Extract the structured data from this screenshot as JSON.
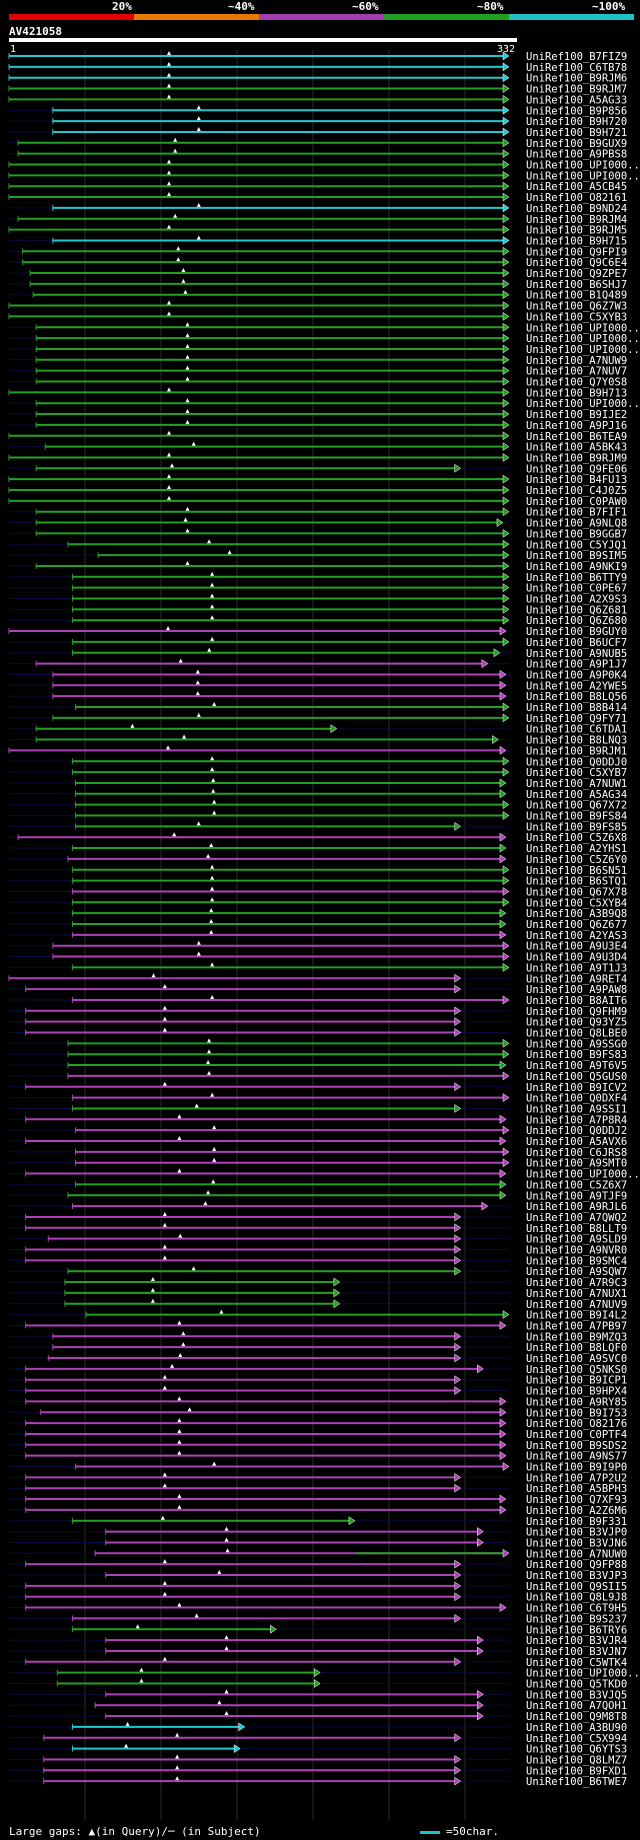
{
  "legend": {
    "labels": [
      "20%",
      "~40%",
      "~60%",
      "~80%",
      "~100%"
    ],
    "colors": [
      "#e00000",
      "#e87800",
      "#a040b0",
      "#20a020",
      "#20c0c8"
    ]
  },
  "query": {
    "id": "AV421058",
    "start": "1",
    "end": "332",
    "length": 332
  },
  "footer": {
    "gaps_text": "Large gaps: ▲(in Query)/─ (in Subject)",
    "scale_text": "=50char.",
    "scale_color": "#20c0c8"
  },
  "chart_data": {
    "type": "alignment-hits",
    "title": "AV421058",
    "x_range": [
      1,
      332
    ],
    "color_key": {
      "cyan": "~100%",
      "green": "~80%",
      "magenta": "~60%"
    },
    "hits": [
      {
        "id": "UniRef100_B7FIZ9",
        "s": 1,
        "e": 332,
        "c": "cyan"
      },
      {
        "id": "UniRef100_C6TB78",
        "s": 1,
        "e": 332,
        "c": "cyan"
      },
      {
        "id": "UniRef100_B9RJM6",
        "s": 1,
        "e": 332,
        "c": "cyan"
      },
      {
        "id": "UniRef100_B9RJM7",
        "s": 1,
        "e": 332,
        "c": "green"
      },
      {
        "id": "UniRef100_A5AG33",
        "s": 1,
        "e": 332,
        "c": "green"
      },
      {
        "id": "UniRef100_B9P856",
        "s": 30,
        "e": 332,
        "c": "cyan"
      },
      {
        "id": "UniRef100_B9H720",
        "s": 30,
        "e": 332,
        "c": "cyan"
      },
      {
        "id": "UniRef100_B9H721",
        "s": 30,
        "e": 332,
        "c": "cyan"
      },
      {
        "id": "UniRef100_B9GUX9",
        "s": 7,
        "e": 332,
        "c": "green"
      },
      {
        "id": "UniRef100_A9PBS8",
        "s": 7,
        "e": 332,
        "c": "green"
      },
      {
        "id": "UniRef100_UPI000...",
        "s": 1,
        "e": 332,
        "c": "green"
      },
      {
        "id": "UniRef100_UPI000...",
        "s": 1,
        "e": 332,
        "c": "green"
      },
      {
        "id": "UniRef100_A5CB45",
        "s": 1,
        "e": 332,
        "c": "green"
      },
      {
        "id": "UniRef100_O82161",
        "s": 1,
        "e": 332,
        "c": "green"
      },
      {
        "id": "UniRef100_B9ND24",
        "s": 30,
        "e": 332,
        "c": "cyan"
      },
      {
        "id": "UniRef100_B9RJM4",
        "s": 7,
        "e": 332,
        "c": "green"
      },
      {
        "id": "UniRef100_B9RJM5",
        "s": 1,
        "e": 332,
        "c": "green"
      },
      {
        "id": "UniRef100_B9H715",
        "s": 30,
        "e": 332,
        "c": "cyan"
      },
      {
        "id": "UniRef100_Q9FPI9",
        "s": 10,
        "e": 332,
        "c": "green"
      },
      {
        "id": "UniRef100_Q9C6E4",
        "s": 10,
        "e": 332,
        "c": "green"
      },
      {
        "id": "UniRef100_Q9ZPE7",
        "s": 15,
        "e": 332,
        "c": "green"
      },
      {
        "id": "UniRef100_B6SHJ7",
        "s": 15,
        "e": 332,
        "c": "green"
      },
      {
        "id": "UniRef100_B1Q489",
        "s": 17,
        "e": 332,
        "c": "green"
      },
      {
        "id": "UniRef100_Q6Z7W3",
        "s": 1,
        "e": 332,
        "c": "green"
      },
      {
        "id": "UniRef100_C5XYB3",
        "s": 1,
        "e": 332,
        "c": "green"
      },
      {
        "id": "UniRef100_UPI000...",
        "s": 19,
        "e": 332,
        "c": "green"
      },
      {
        "id": "UniRef100_UPI000...",
        "s": 19,
        "e": 332,
        "c": "green"
      },
      {
        "id": "UniRef100_UPI000...",
        "s": 19,
        "e": 332,
        "c": "green"
      },
      {
        "id": "UniRef100_A7NUW9",
        "s": 19,
        "e": 332,
        "c": "green"
      },
      {
        "id": "UniRef100_A7NUV7",
        "s": 19,
        "e": 332,
        "c": "green"
      },
      {
        "id": "UniRef100_Q7Y0S8",
        "s": 19,
        "e": 332,
        "c": "green"
      },
      {
        "id": "UniRef100_B9H713",
        "s": 1,
        "e": 332,
        "c": "green"
      },
      {
        "id": "UniRef100_UPI000...",
        "s": 19,
        "e": 332,
        "c": "green"
      },
      {
        "id": "UniRef100_B9IJE2",
        "s": 19,
        "e": 332,
        "c": "green"
      },
      {
        "id": "UniRef100_A9PJ16",
        "s": 19,
        "e": 332,
        "c": "green"
      },
      {
        "id": "UniRef100_B6TEA9",
        "s": 1,
        "e": 332,
        "c": "green"
      },
      {
        "id": "UniRef100_A5BK43",
        "s": 25,
        "e": 332,
        "c": "green"
      },
      {
        "id": "UniRef100_B9RJM9",
        "s": 1,
        "e": 332,
        "c": "green"
      },
      {
        "id": "UniRef100_Q9FE06",
        "s": 19,
        "e": 300,
        "c": "green"
      },
      {
        "id": "UniRef100_B4FU13",
        "s": 1,
        "e": 332,
        "c": "green"
      },
      {
        "id": "UniRef100_C4J0Z5",
        "s": 1,
        "e": 332,
        "c": "green"
      },
      {
        "id": "UniRef100_C0PAW0",
        "s": 1,
        "e": 332,
        "c": "green"
      },
      {
        "id": "UniRef100_B7FIF1",
        "s": 19,
        "e": 332,
        "c": "green"
      },
      {
        "id": "UniRef100_A9NLQ8",
        "s": 19,
        "e": 328,
        "c": "green"
      },
      {
        "id": "UniRef100_B9GGB7",
        "s": 19,
        "e": 332,
        "c": "green"
      },
      {
        "id": "UniRef100_C5YJQ1",
        "s": 40,
        "e": 332,
        "c": "green"
      },
      {
        "id": "UniRef100_B9SIM5",
        "s": 60,
        "e": 332,
        "c": "green"
      },
      {
        "id": "UniRef100_A9NKI9",
        "s": 19,
        "e": 332,
        "c": "green"
      },
      {
        "id": "UniRef100_B6TTY9",
        "s": 43,
        "e": 332,
        "c": "green"
      },
      {
        "id": "UniRef100_C0PE67",
        "s": 43,
        "e": 332,
        "c": "green"
      },
      {
        "id": "UniRef100_A2X9S3",
        "s": 43,
        "e": 332,
        "c": "green"
      },
      {
        "id": "UniRef100_Q6Z681",
        "s": 43,
        "e": 332,
        "c": "green"
      },
      {
        "id": "UniRef100_Q6Z680",
        "s": 43,
        "e": 332,
        "c": "green"
      },
      {
        "id": "UniRef100_B9GUY0",
        "s": 1,
        "e": 330,
        "c": "magenta"
      },
      {
        "id": "UniRef100_B6UCF7",
        "s": 43,
        "e": 332,
        "c": "green"
      },
      {
        "id": "UniRef100_A9NUB5",
        "s": 43,
        "e": 326,
        "c": "green"
      },
      {
        "id": "UniRef100_A9P1J7",
        "s": 19,
        "e": 318,
        "c": "magenta"
      },
      {
        "id": "UniRef100_A9P0K4",
        "s": 30,
        "e": 330,
        "c": "magenta"
      },
      {
        "id": "UniRef100_A2YWE5",
        "s": 30,
        "e": 330,
        "c": "magenta"
      },
      {
        "id": "UniRef100_B8LQ56",
        "s": 30,
        "e": 330,
        "c": "magenta"
      },
      {
        "id": "UniRef100_B8B414",
        "s": 45,
        "e": 332,
        "c": "green"
      },
      {
        "id": "UniRef100_Q9FY71",
        "s": 30,
        "e": 332,
        "c": "green"
      },
      {
        "id": "UniRef100_C6TDA1",
        "s": 19,
        "e": 218,
        "c": "green"
      },
      {
        "id": "UniRef100_B8LNQ3",
        "s": 19,
        "e": 325,
        "c": "green"
      },
      {
        "id": "UniRef100_B9RJM1",
        "s": 1,
        "e": 330,
        "c": "magenta"
      },
      {
        "id": "UniRef100_Q0DDJ0",
        "s": 43,
        "e": 332,
        "c": "green"
      },
      {
        "id": "UniRef100_C5XYB7",
        "s": 43,
        "e": 332,
        "c": "green"
      },
      {
        "id": "UniRef100_A7NUW1",
        "s": 45,
        "e": 330,
        "c": "green"
      },
      {
        "id": "UniRef100_A5AG34",
        "s": 45,
        "e": 330,
        "c": "green"
      },
      {
        "id": "UniRef100_Q67X72",
        "s": 45,
        "e": 332,
        "c": "green"
      },
      {
        "id": "UniRef100_B9FS84",
        "s": 45,
        "e": 332,
        "c": "green"
      },
      {
        "id": "UniRef100_B9FS85",
        "s": 45,
        "e": 300,
        "c": "green"
      },
      {
        "id": "UniRef100_C5Z6X8",
        "s": 7,
        "e": 330,
        "c": "magenta"
      },
      {
        "id": "UniRef100_A2YHS1",
        "s": 43,
        "e": 330,
        "c": "green"
      },
      {
        "id": "UniRef100_C5Z6Y0",
        "s": 40,
        "e": 330,
        "c": "magenta"
      },
      {
        "id": "UniRef100_B6SN51",
        "s": 43,
        "e": 332,
        "c": "green"
      },
      {
        "id": "UniRef100_B6STQ1",
        "s": 43,
        "e": 332,
        "c": "green"
      },
      {
        "id": "UniRef100_Q67X78",
        "s": 43,
        "e": 332,
        "c": "magenta"
      },
      {
        "id": "UniRef100_C5XYB4",
        "s": 43,
        "e": 332,
        "c": "green"
      },
      {
        "id": "UniRef100_A3B9Q8",
        "s": 43,
        "e": 330,
        "c": "green"
      },
      {
        "id": "UniRef100_Q6Z677",
        "s": 43,
        "e": 330,
        "c": "green"
      },
      {
        "id": "UniRef100_A2YAS3",
        "s": 43,
        "e": 330,
        "c": "magenta"
      },
      {
        "id": "UniRef100_A9U3E4",
        "s": 30,
        "e": 332,
        "c": "magenta"
      },
      {
        "id": "UniRef100_A9U3D4",
        "s": 30,
        "e": 332,
        "c": "magenta"
      },
      {
        "id": "UniRef100_A9T1J3",
        "s": 43,
        "e": 332,
        "c": "green"
      },
      {
        "id": "UniRef100_A9RET4",
        "s": 1,
        "e": 300,
        "c": "magenta"
      },
      {
        "id": "UniRef100_A9PAW8",
        "s": 12,
        "e": 300,
        "c": "magenta"
      },
      {
        "id": "UniRef100_B8AIT6",
        "s": 43,
        "e": 332,
        "c": "magenta"
      },
      {
        "id": "UniRef100_Q9FHM9",
        "s": 12,
        "e": 300,
        "c": "magenta"
      },
      {
        "id": "UniRef100_Q93YZ5",
        "s": 12,
        "e": 300,
        "c": "magenta"
      },
      {
        "id": "UniRef100_Q8LBE0",
        "s": 12,
        "e": 300,
        "c": "magenta"
      },
      {
        "id": "UniRef100_A9SSG0",
        "s": 40,
        "e": 332,
        "c": "green"
      },
      {
        "id": "UniRef100_B9FS83",
        "s": 40,
        "e": 332,
        "c": "green"
      },
      {
        "id": "UniRef100_A9T6V5",
        "s": 40,
        "e": 330,
        "c": "green"
      },
      {
        "id": "UniRef100_Q5GUS0",
        "s": 40,
        "e": 332,
        "c": "magenta"
      },
      {
        "id": "UniRef100_B9ICV2",
        "s": 12,
        "e": 300,
        "c": "magenta"
      },
      {
        "id": "UniRef100_Q0DXF4",
        "s": 43,
        "e": 332,
        "c": "magenta"
      },
      {
        "id": "UniRef100_A9SSI1",
        "s": 43,
        "e": 300,
        "c": "green"
      },
      {
        "id": "UniRef100_A7P8R4",
        "s": 12,
        "e": 330,
        "c": "magenta"
      },
      {
        "id": "UniRef100_Q0DDJ2",
        "s": 45,
        "e": 332,
        "c": "magenta"
      },
      {
        "id": "UniRef100_A5AVX6",
        "s": 12,
        "e": 330,
        "c": "magenta"
      },
      {
        "id": "UniRef100_C6JRS8",
        "s": 45,
        "e": 332,
        "c": "magenta"
      },
      {
        "id": "UniRef100_A9SMT0",
        "s": 45,
        "e": 332,
        "c": "magenta"
      },
      {
        "id": "UniRef100_UPI000...",
        "s": 12,
        "e": 330,
        "c": "magenta"
      },
      {
        "id": "UniRef100_C5Z6X7",
        "s": 45,
        "e": 330,
        "c": "green"
      },
      {
        "id": "UniRef100_A9TJF9",
        "s": 40,
        "e": 330,
        "c": "green"
      },
      {
        "id": "UniRef100_A9RJL6",
        "s": 43,
        "e": 318,
        "c": "magenta"
      },
      {
        "id": "UniRef100_A7QWQ2",
        "s": 12,
        "e": 300,
        "c": "magenta"
      },
      {
        "id": "UniRef100_B8LLT9",
        "s": 12,
        "e": 300,
        "c": "magenta"
      },
      {
        "id": "UniRef100_A9SLD9",
        "s": 27,
        "e": 300,
        "c": "magenta"
      },
      {
        "id": "UniRef100_A9NVR0",
        "s": 12,
        "e": 300,
        "c": "magenta"
      },
      {
        "id": "UniRef100_B9SMC4",
        "s": 12,
        "e": 300,
        "c": "magenta"
      },
      {
        "id": "UniRef100_A9SQW7",
        "s": 40,
        "e": 300,
        "c": "green"
      },
      {
        "id": "UniRef100_A7R9C3",
        "s": 38,
        "e": 220,
        "c": "green"
      },
      {
        "id": "UniRef100_A7NUX1",
        "s": 38,
        "e": 220,
        "c": "green"
      },
      {
        "id": "UniRef100_A7NUV9",
        "s": 38,
        "e": 220,
        "c": "green"
      },
      {
        "id": "UniRef100_B9I4L2",
        "s": 52,
        "e": 332,
        "c": "green"
      },
      {
        "id": "UniRef100_A7PB97",
        "s": 12,
        "e": 330,
        "c": "magenta"
      },
      {
        "id": "UniRef100_B9MZQ3",
        "s": 30,
        "e": 300,
        "c": "magenta"
      },
      {
        "id": "UniRef100_B8LQF0",
        "s": 30,
        "e": 300,
        "c": "magenta"
      },
      {
        "id": "UniRef100_A9SVC0",
        "s": 27,
        "e": 300,
        "c": "magenta"
      },
      {
        "id": "UniRef100_Q5NKS0",
        "s": 12,
        "e": 315,
        "c": "magenta"
      },
      {
        "id": "UniRef100_B9ICP1",
        "s": 12,
        "e": 300,
        "c": "magenta"
      },
      {
        "id": "UniRef100_B9HPX4",
        "s": 12,
        "e": 300,
        "c": "magenta"
      },
      {
        "id": "UniRef100_A9RY85",
        "s": 12,
        "e": 330,
        "c": "magenta"
      },
      {
        "id": "UniRef100_B9I753",
        "s": 22,
        "e": 330,
        "c": "magenta"
      },
      {
        "id": "UniRef100_O82176",
        "s": 12,
        "e": 330,
        "c": "magenta"
      },
      {
        "id": "UniRef100_C0PTF4",
        "s": 12,
        "e": 330,
        "c": "magenta"
      },
      {
        "id": "UniRef100_B9SDS2",
        "s": 12,
        "e": 330,
        "c": "magenta"
      },
      {
        "id": "UniRef100_A9NS77",
        "s": 12,
        "e": 330,
        "c": "magenta"
      },
      {
        "id": "UniRef100_B9I9P0",
        "s": 45,
        "e": 332,
        "c": "magenta"
      },
      {
        "id": "UniRef100_A7P2U2",
        "s": 12,
        "e": 300,
        "c": "magenta"
      },
      {
        "id": "UniRef100_A5BPH3",
        "s": 12,
        "e": 300,
        "c": "magenta"
      },
      {
        "id": "UniRef100_Q7XF93",
        "s": 12,
        "e": 330,
        "c": "magenta"
      },
      {
        "id": "UniRef100_A2Z6M6",
        "s": 12,
        "e": 330,
        "c": "magenta"
      },
      {
        "id": "UniRef100_B9F331",
        "s": 43,
        "e": 230,
        "c": "green"
      },
      {
        "id": "UniRef100_B3VJP0",
        "s": 65,
        "e": 315,
        "c": "magenta"
      },
      {
        "id": "UniRef100_B3VJN6",
        "s": 65,
        "e": 315,
        "c": "magenta"
      },
      {
        "id": "UniRef100_A7NUW0",
        "s": 58,
        "e": 332,
        "c": "mixed"
      },
      {
        "id": "UniRef100_Q9FP88",
        "s": 12,
        "e": 300,
        "c": "magenta"
      },
      {
        "id": "UniRef100_B3VJP3",
        "s": 65,
        "e": 300,
        "c": "magenta"
      },
      {
        "id": "UniRef100_Q9SII5",
        "s": 12,
        "e": 300,
        "c": "magenta"
      },
      {
        "id": "UniRef100_Q8L9J8",
        "s": 12,
        "e": 300,
        "c": "magenta"
      },
      {
        "id": "UniRef100_C6T9H5",
        "s": 12,
        "e": 330,
        "c": "magenta"
      },
      {
        "id": "UniRef100_B9S237",
        "s": 43,
        "e": 300,
        "c": "magenta"
      },
      {
        "id": "UniRef100_B6TRY6",
        "s": 43,
        "e": 178,
        "c": "green"
      },
      {
        "id": "UniRef100_B3VJR4",
        "s": 65,
        "e": 315,
        "c": "magenta"
      },
      {
        "id": "UniRef100_B3VJN7",
        "s": 65,
        "e": 315,
        "c": "magenta"
      },
      {
        "id": "UniRef100_C5WTK4",
        "s": 12,
        "e": 300,
        "c": "magenta"
      },
      {
        "id": "UniRef100_UPI000...",
        "s": 33,
        "e": 207,
        "c": "green"
      },
      {
        "id": "UniRef100_Q5TKD0",
        "s": 33,
        "e": 207,
        "c": "green"
      },
      {
        "id": "UniRef100_B3VJQ5",
        "s": 65,
        "e": 315,
        "c": "magenta"
      },
      {
        "id": "UniRef100_A7QOH1",
        "s": 58,
        "e": 315,
        "c": "magenta"
      },
      {
        "id": "UniRef100_Q9M8T8",
        "s": 65,
        "e": 315,
        "c": "magenta"
      },
      {
        "id": "UniRef100_A3BU90",
        "s": 43,
        "e": 157,
        "c": "cyan"
      },
      {
        "id": "UniRef100_C5X994",
        "s": 24,
        "e": 300,
        "c": "magenta"
      },
      {
        "id": "UniRef100_Q6YTS3",
        "s": 43,
        "e": 154,
        "c": "cyan"
      },
      {
        "id": "UniRef100_Q8LMZ7",
        "s": 24,
        "e": 300,
        "c": "magenta"
      },
      {
        "id": "UniRef100_B9FXD1",
        "s": 24,
        "e": 300,
        "c": "magenta"
      },
      {
        "id": "UniRef100_B6TWE7",
        "s": 24,
        "e": 300,
        "c": "magenta"
      }
    ]
  }
}
